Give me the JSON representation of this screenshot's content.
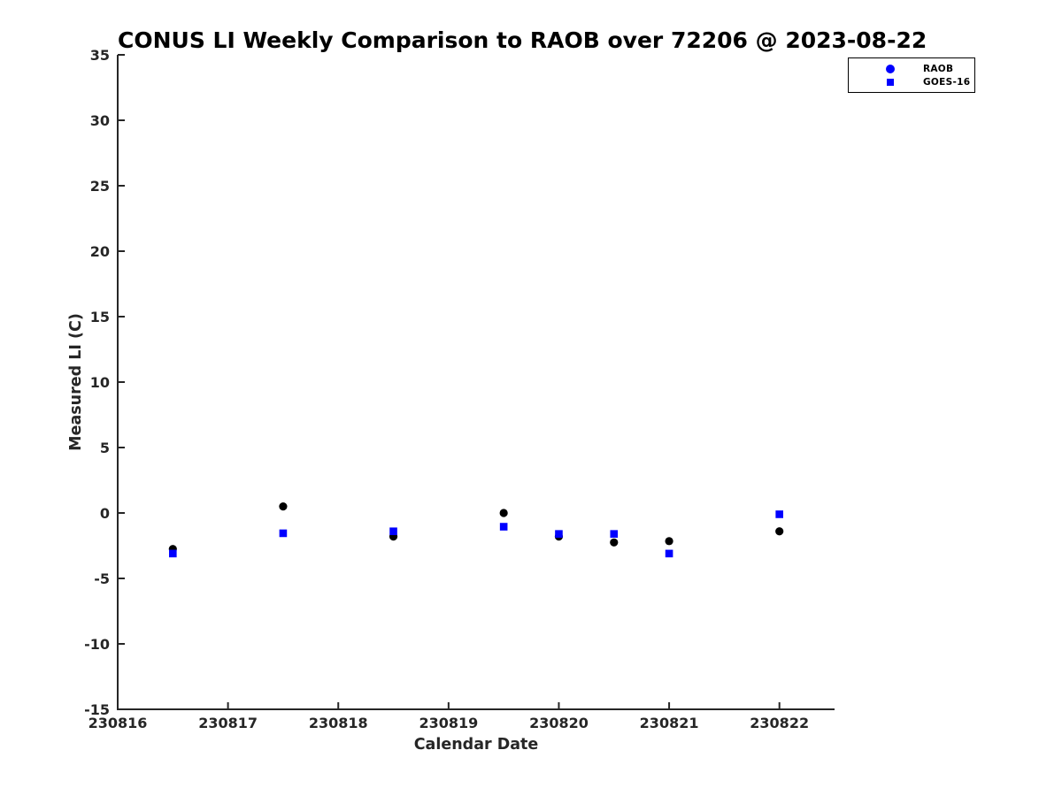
{
  "chart_data": {
    "type": "scatter",
    "title": "CONUS LI Weekly Comparison to RAOB over 72206 @ 2023-08-22",
    "xlabel": "Calendar Date",
    "ylabel": "Measured LI (C)",
    "xlim": [
      230816,
      230822.5
    ],
    "ylim": [
      -15,
      35
    ],
    "xticks": [
      230816,
      230817,
      230818,
      230819,
      230820,
      230821,
      230822
    ],
    "yticks": [
      -15,
      -10,
      -5,
      0,
      5,
      10,
      15,
      20,
      25,
      30,
      35
    ],
    "grid": false,
    "legend": {
      "position": "top-right",
      "entries": [
        "RAOB",
        "GOES-16"
      ]
    },
    "x": [
      230816.5,
      230817.5,
      230818.5,
      230819.5,
      230820,
      230820.5,
      230821,
      230822
    ],
    "series": [
      {
        "name": "RAOB",
        "marker": "circle",
        "color": "#000000",
        "legend_color": "#0000ff",
        "values": [
          -2.75,
          0.5,
          -1.8,
          0,
          -1.8,
          -2.25,
          -2.15,
          -1.4
        ]
      },
      {
        "name": "GOES-16",
        "marker": "square",
        "color": "#0000ff",
        "legend_color": "#0000ff",
        "values": [
          -3.1,
          -1.55,
          -1.4,
          -1.05,
          -1.6,
          -1.6,
          -3.1,
          -0.1
        ]
      }
    ]
  },
  "colors": {
    "marker_blue": "#0000ff",
    "marker_black": "#000000",
    "axis": "#262626",
    "title": "#000000",
    "background": "#ffffff"
  }
}
